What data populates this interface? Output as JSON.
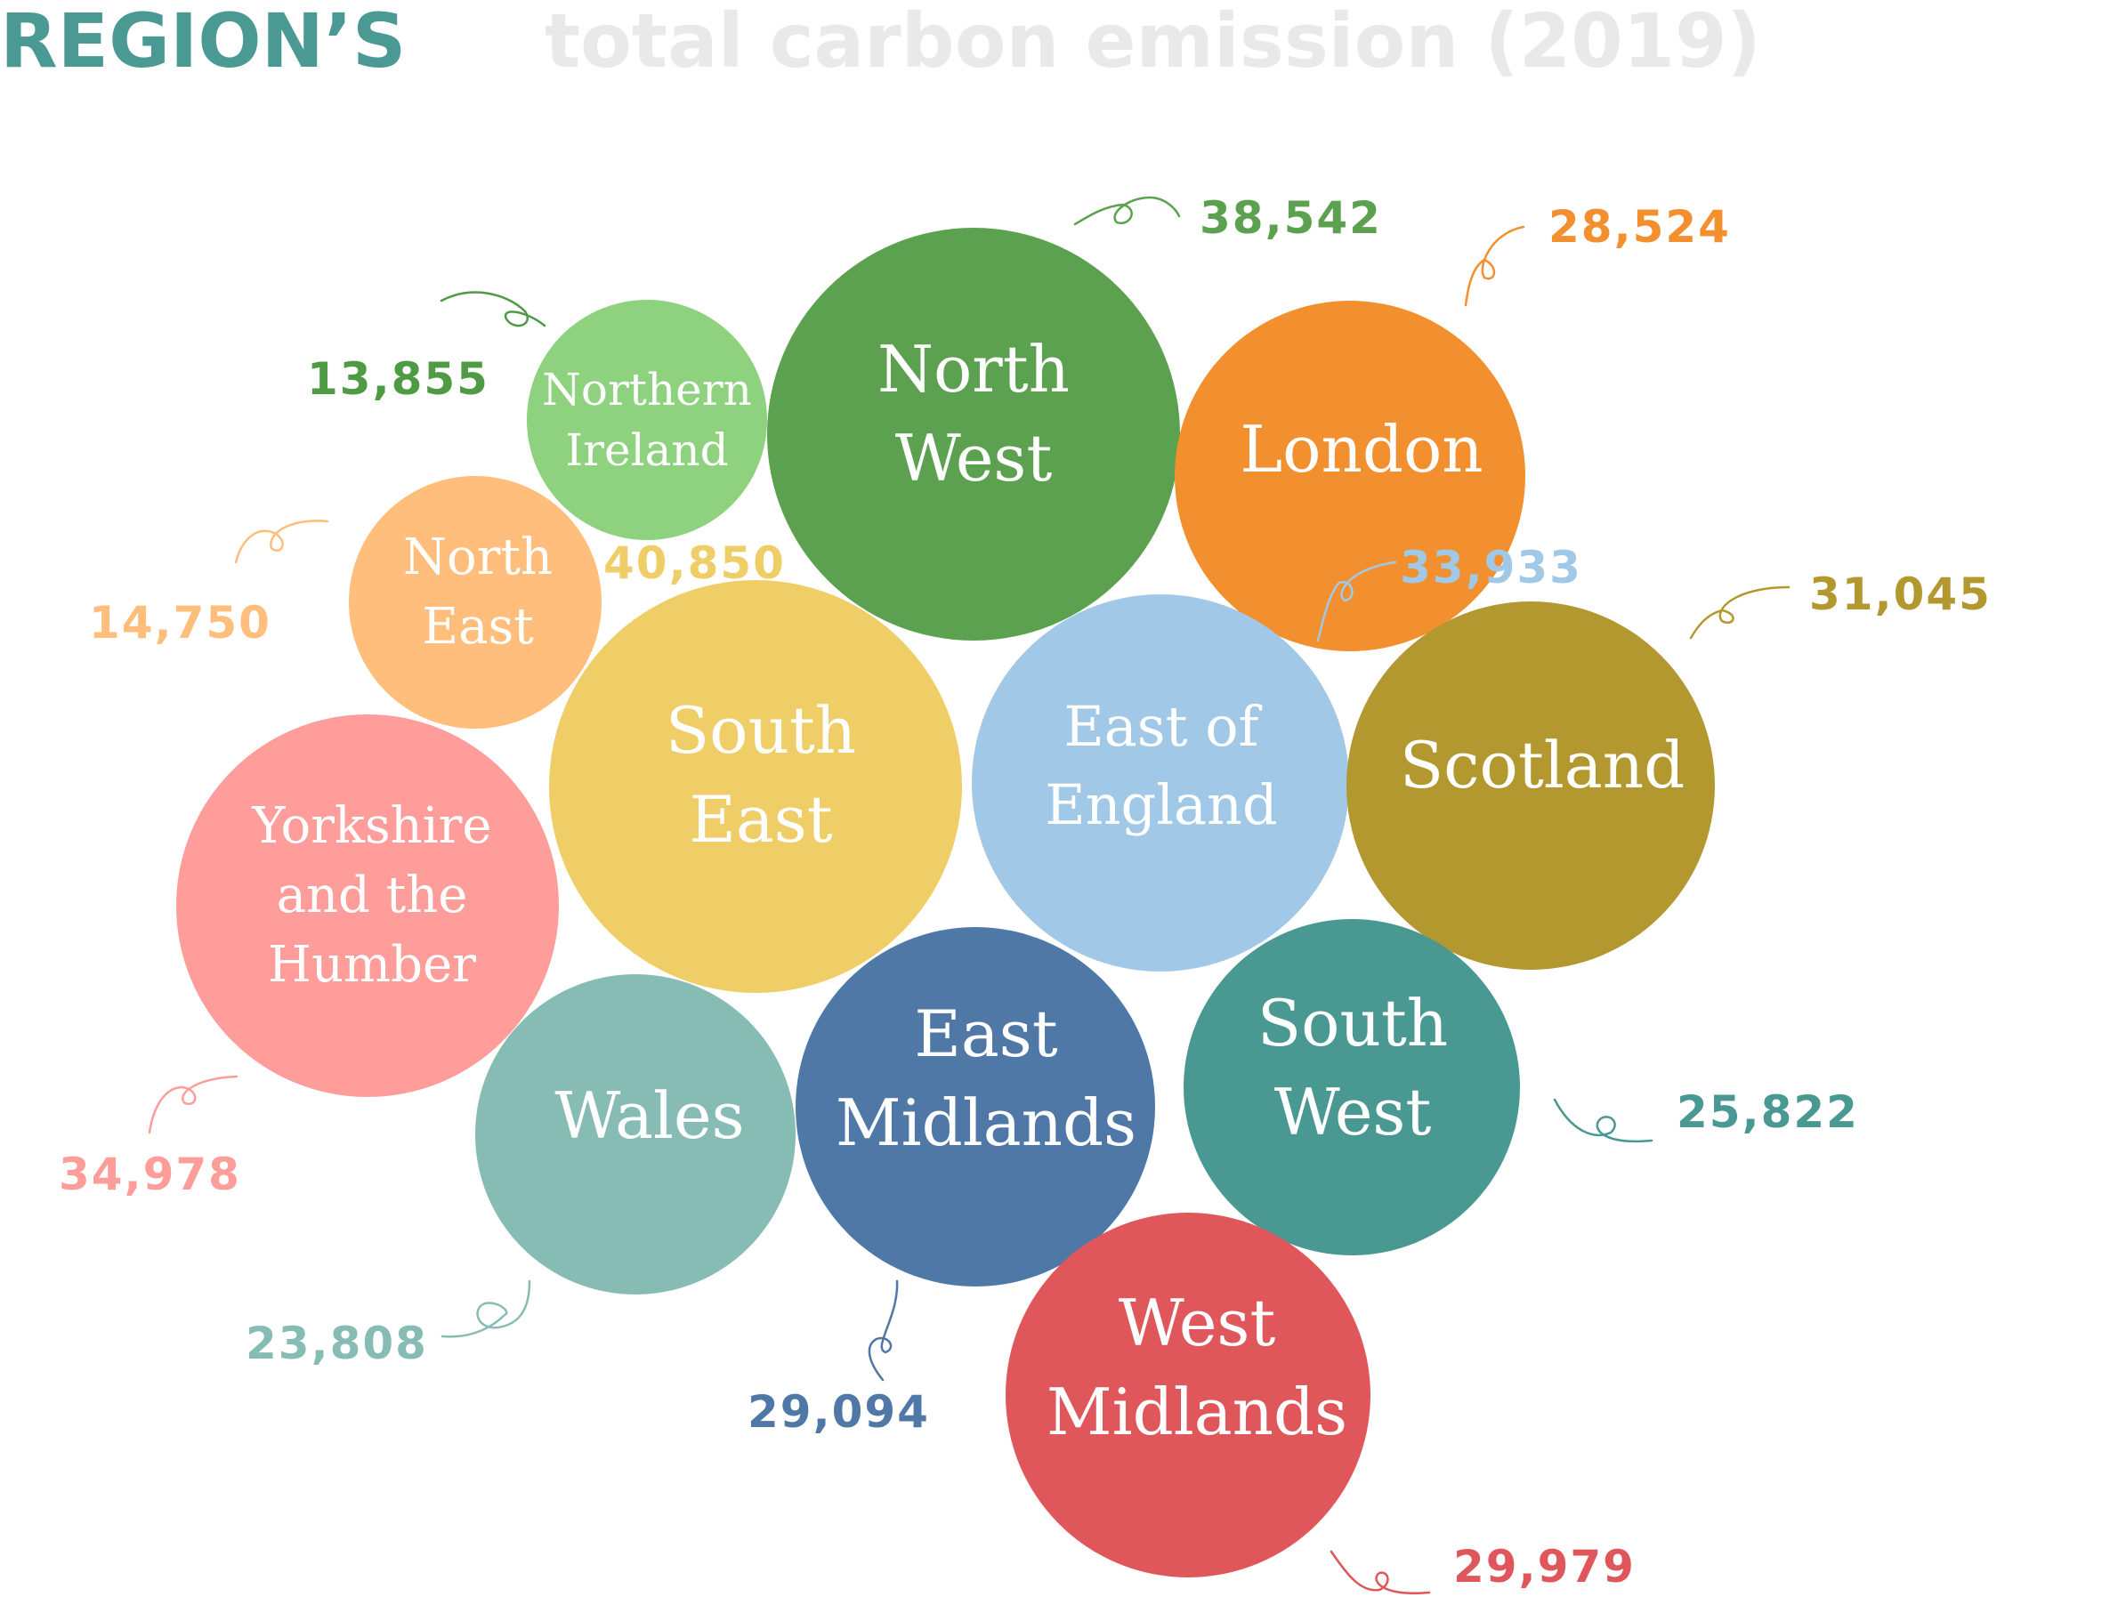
{
  "title": {
    "main": "REGION’S",
    "rest": "total carbon emission (2019)"
  },
  "colors": {
    "title": "#4a9a93",
    "title_faded": "#e9e9e9",
    "label_text": "#ffffff"
  },
  "chart_data": {
    "type": "bubble",
    "unit_note": "",
    "bubbles": [
      {
        "name": "Northern Ireland",
        "lines": [
          "Northern",
          "Ireland"
        ],
        "value": 13855,
        "value_label": "13,855",
        "color": "#8ed17e",
        "label_color": "#4f9a44",
        "arrow": "northern-ireland"
      },
      {
        "name": "North West",
        "lines": [
          "North",
          "West"
        ],
        "value": 38542,
        "value_label": "38,542",
        "color": "#5ba14f",
        "label_color": "#5ba14f",
        "arrow": "north-west"
      },
      {
        "name": "London",
        "lines": [
          "London"
        ],
        "value": 28524,
        "value_label": "28,524",
        "color": "#f28f2e",
        "label_color": "#f28f2e",
        "arrow": "london"
      },
      {
        "name": "North East",
        "lines": [
          "North",
          "East"
        ],
        "value": 14750,
        "value_label": "14,750",
        "color": "#ffbe7b",
        "label_color": "#ffbe7b",
        "arrow": "north-east"
      },
      {
        "name": "South East",
        "lines": [
          "South",
          "East"
        ],
        "value": 40850,
        "value_label": "40,850",
        "color": "#efcd67",
        "label_color": "#efcd67",
        "arrow": "south-east"
      },
      {
        "name": "East of England",
        "lines": [
          "East of",
          "England"
        ],
        "value": 33933,
        "value_label": "33,933",
        "color": "#a1c9e7",
        "label_color": "#a1c9e7",
        "arrow": "east-of-england"
      },
      {
        "name": "Scotland",
        "lines": [
          "Scotland"
        ],
        "value": 31045,
        "value_label": "31,045",
        "color": "#b3982f",
        "label_color": "#b3982f",
        "arrow": "scotland"
      },
      {
        "name": "Yorkshire and the Humber",
        "lines": [
          "Yorkshire",
          "and the",
          "Humber"
        ],
        "value": 34978,
        "value_label": "34,978",
        "color": "#fe9d9a",
        "label_color": "#fe9d9a",
        "arrow": "yorkshire"
      },
      {
        "name": "Wales",
        "lines": [
          "Wales"
        ],
        "value": 23808,
        "value_label": "23,808",
        "color": "#87bcb4",
        "label_color": "#87bcb4",
        "arrow": "wales"
      },
      {
        "name": "East Midlands",
        "lines": [
          "East",
          "Midlands"
        ],
        "value": 29094,
        "value_label": "29,094",
        "color": "#4f78a6",
        "label_color": "#4f78a6",
        "arrow": "east-midlands"
      },
      {
        "name": "South West",
        "lines": [
          "South",
          "West"
        ],
        "value": 25822,
        "value_label": "25,822",
        "color": "#4a9892",
        "label_color": "#4a9892",
        "arrow": "south-west"
      },
      {
        "name": "West Midlands",
        "lines": [
          "West",
          "Midlands"
        ],
        "value": 29979,
        "value_label": "29,979",
        "color": "#e0575b",
        "label_color": "#e0575b",
        "arrow": "west-midlands"
      }
    ]
  }
}
